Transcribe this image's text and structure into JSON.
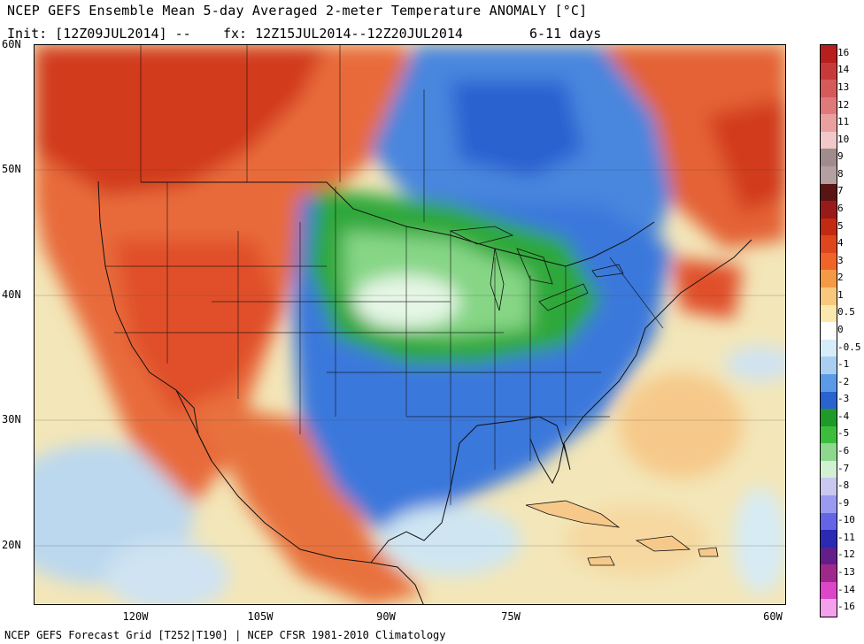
{
  "header": {
    "title": "NCEP GEFS Ensemble Mean 5-day Averaged 2-meter Temperature ANOMALY [°C]",
    "init": "Init: [12Z09JUL2014] --",
    "fx": "fx: 12Z15JUL2014--12Z20JUL2014",
    "days": "6-11 days"
  },
  "footer": {
    "text": "NCEP GEFS Forecast Grid [T252|T190] | NCEP CFSR 1981-2010 Climatology"
  },
  "map": {
    "lat_labels": [
      "60N",
      "50N",
      "40N",
      "30N",
      "20N"
    ],
    "lon_labels": [
      "120W",
      "105W",
      "90W",
      "75W",
      "60W"
    ]
  },
  "colorbar": {
    "labels": [
      "16",
      "14",
      "13",
      "12",
      "11",
      "10",
      "9",
      "8",
      "7",
      "6",
      "5",
      "4",
      "3",
      "2",
      "1",
      "0.5",
      "0",
      "-0.5",
      "-1",
      "-2",
      "-3",
      "-4",
      "-5",
      "-6",
      "-7",
      "-8",
      "-9",
      "-10",
      "-11",
      "-12",
      "-13",
      "-14",
      "-16"
    ],
    "colors": [
      "#b71e1e",
      "#c83a3a",
      "#d65a5a",
      "#e07a7a",
      "#eba0a0",
      "#f3c8c8",
      "#a08c8c",
      "#b4a0a0",
      "#5a1414",
      "#9a1a1a",
      "#c22a12",
      "#e0461e",
      "#f0642a",
      "#f49a46",
      "#f8c87c",
      "#fbe8ac",
      "#ffffff",
      "#d6ecf8",
      "#a8cff2",
      "#5a9ae6",
      "#2a62d0",
      "#1e9a2a",
      "#3cbe3c",
      "#8ed88e",
      "#d2f0d2",
      "#c8c8f0",
      "#9a9af0",
      "#6464e6",
      "#2a2ab4",
      "#641e8c",
      "#a0288c",
      "#dc46c8",
      "#f4a0ec"
    ]
  }
}
